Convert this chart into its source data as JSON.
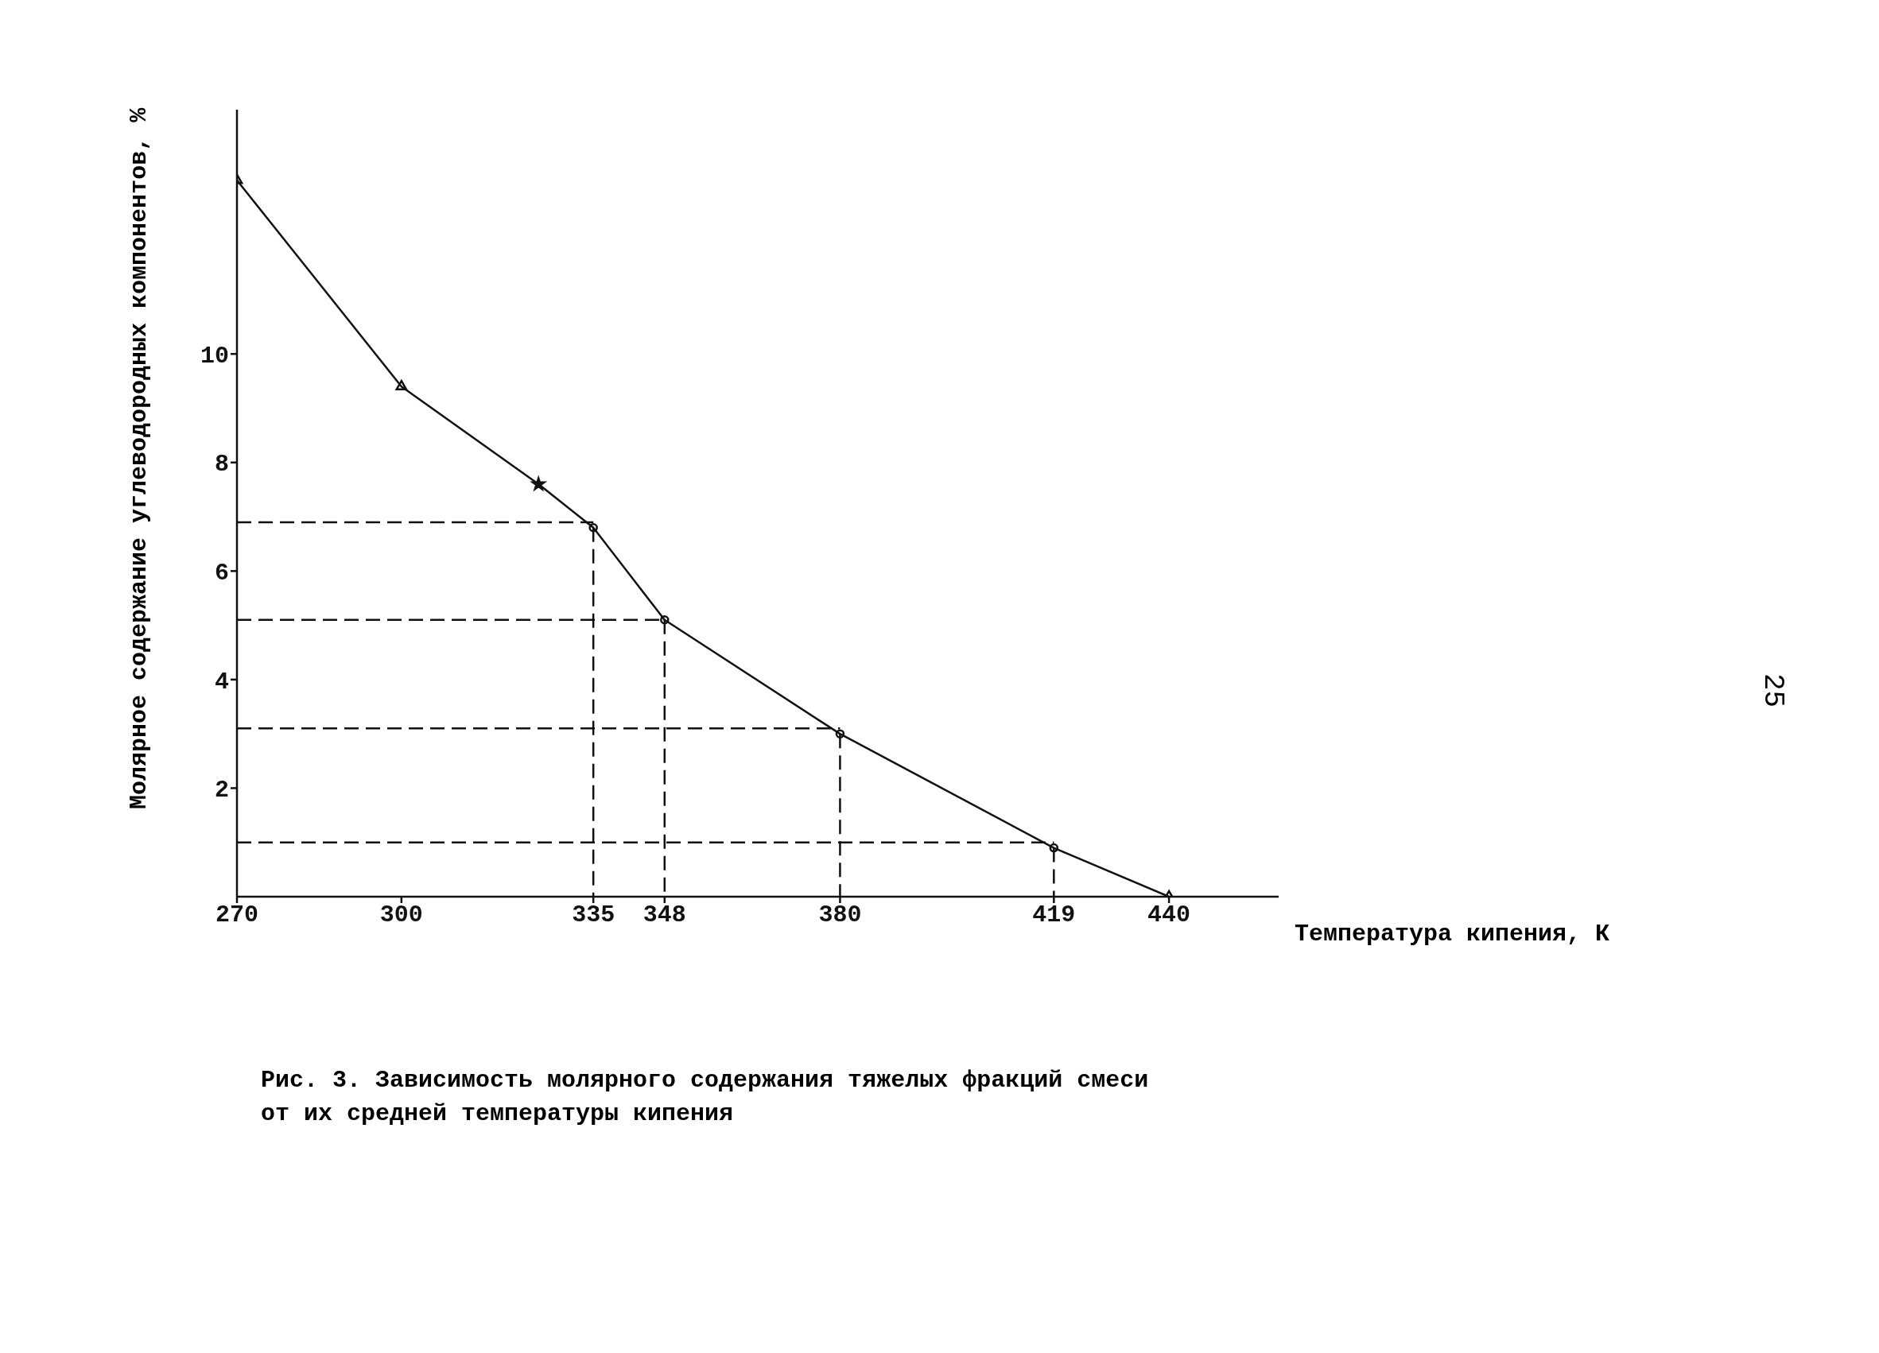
{
  "chart_data": {
    "type": "line",
    "xlabel": "Температура кипения, К",
    "ylabel": "Молярное содержание углеводородных компонентов, %",
    "annotations": [
      "Рис. 3. Зависимость молярного содержания тяжелых фракций смеси от их средней температуры кипения",
      "25"
    ],
    "xlim": [
      270,
      460
    ],
    "xticks": [
      270,
      300,
      335,
      348,
      380,
      419,
      440
    ],
    "ylim": [
      0,
      14.5
    ],
    "yticks": [
      2,
      4,
      6,
      8,
      10
    ],
    "grid": false,
    "series": [
      {
        "type": "line",
        "color": "#111111",
        "line_style": "solid",
        "marker": "none",
        "x": [
          270,
          300,
          325,
          335,
          348,
          380,
          419,
          440
        ],
        "values": [
          13.2,
          9.4,
          7.6,
          6.8,
          5.1,
          3.0,
          0.9,
          0
        ]
      },
      {
        "type": "scatter",
        "color": "#111111",
        "marker": "triangle",
        "x": [
          270,
          300,
          440
        ],
        "values": [
          13.2,
          9.4,
          0
        ]
      },
      {
        "type": "scatter",
        "color": "#111111",
        "marker": "star",
        "x": [
          325
        ],
        "values": [
          7.6
        ]
      },
      {
        "type": "scatter",
        "color": "#111111",
        "marker": "circle",
        "x": [
          335,
          348,
          380,
          419
        ],
        "values": [
          6.8,
          5.1,
          3.0,
          0.9
        ]
      },
      {
        "type": "line",
        "color": "#111111",
        "line_style": "dashed",
        "marker": "none",
        "x": [
          270,
          335
        ],
        "values": [
          6.9,
          6.9
        ]
      },
      {
        "type": "line",
        "color": "#111111",
        "line_style": "dashed",
        "marker": "none",
        "x": [
          270,
          348
        ],
        "values": [
          5.1,
          5.1
        ]
      },
      {
        "type": "line",
        "color": "#111111",
        "line_style": "dashed",
        "marker": "none",
        "x": [
          270,
          380
        ],
        "values": [
          3.1,
          3.1
        ]
      },
      {
        "type": "line",
        "color": "#111111",
        "line_style": "dashed",
        "marker": "none",
        "x": [
          270,
          419
        ],
        "values": [
          1.0,
          1.0
        ]
      },
      {
        "type": "line",
        "color": "#111111",
        "line_style": "dashed",
        "marker": "none",
        "x": [
          335,
          335
        ],
        "values": [
          6.8,
          0
        ]
      },
      {
        "type": "line",
        "color": "#111111",
        "line_style": "dashed",
        "marker": "none",
        "x": [
          348,
          348
        ],
        "values": [
          5.1,
          0
        ]
      },
      {
        "type": "line",
        "color": "#111111",
        "line_style": "dashed",
        "marker": "none",
        "x": [
          380,
          380
        ],
        "values": [
          3.0,
          0
        ]
      },
      {
        "type": "line",
        "color": "#111111",
        "line_style": "dashed",
        "marker": "none",
        "x": [
          419,
          419
        ],
        "values": [
          0.9,
          0
        ]
      }
    ]
  }
}
